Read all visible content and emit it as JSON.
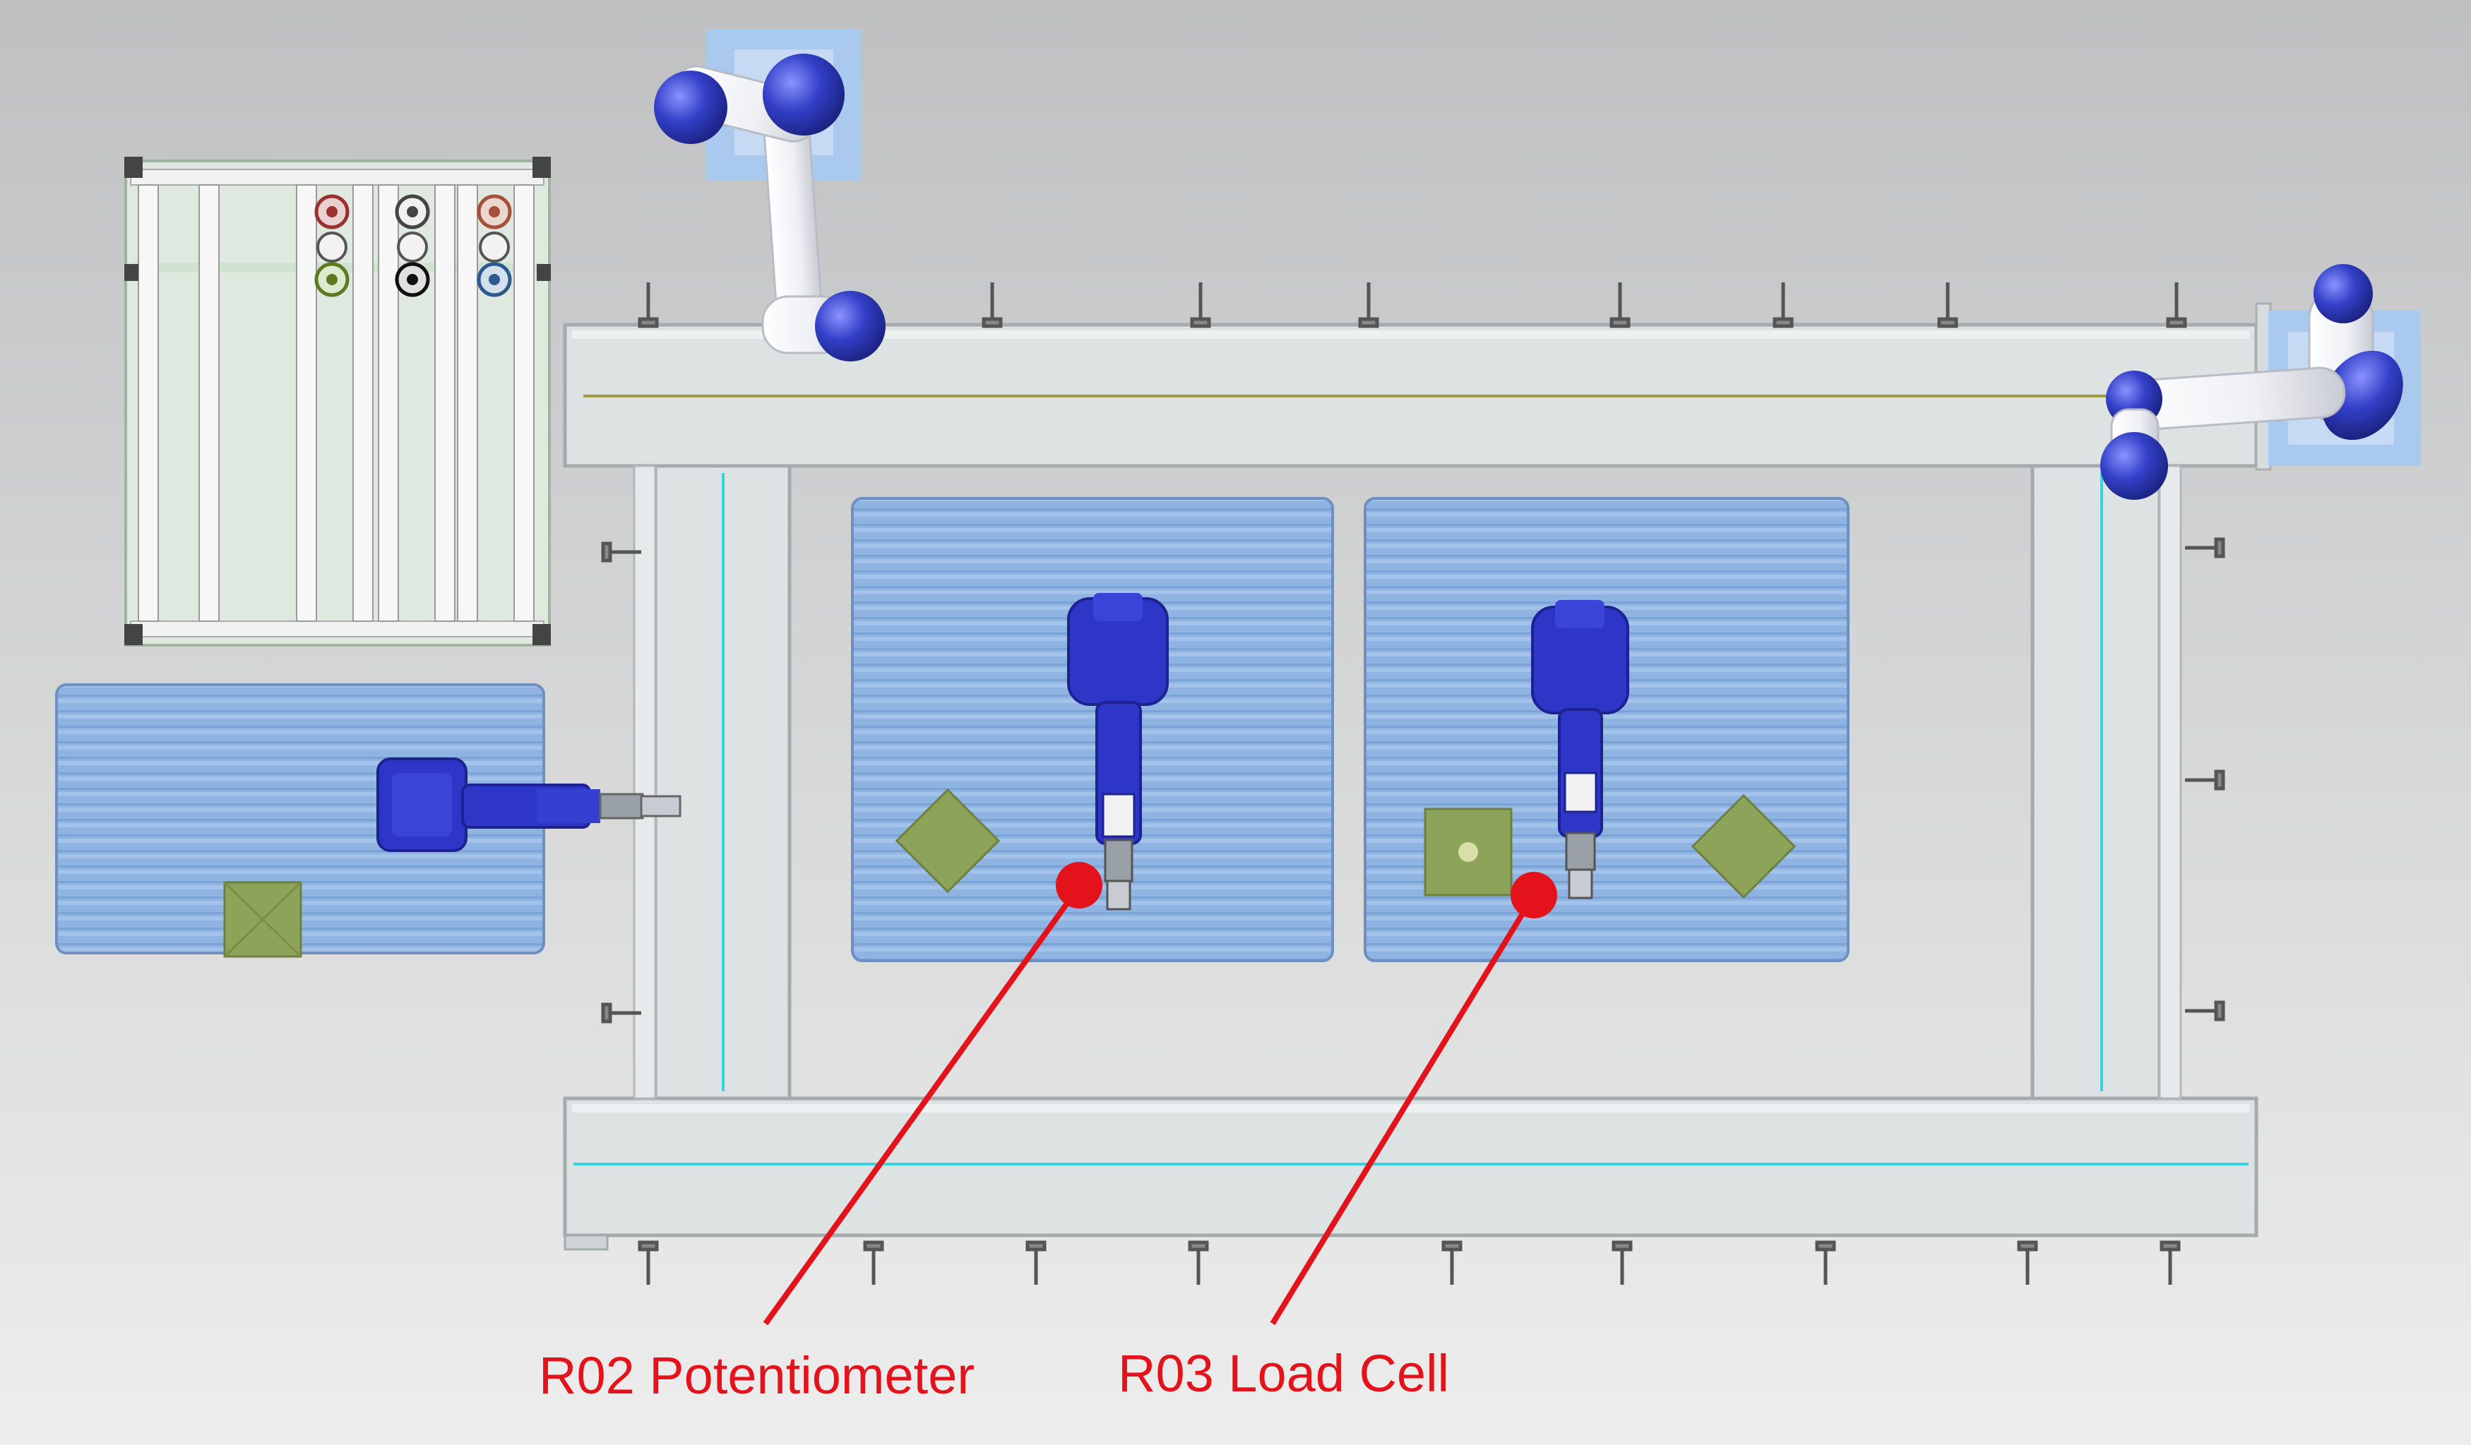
{
  "colors": {
    "background_top": "#bfc0c1",
    "background_bottom": "#ededed",
    "frame_fill": "#dde2e3",
    "frame_stroke": "#a4abad",
    "table_fill": "#8fb4e2",
    "table_line": "#7ba3d6",
    "fixture_green": "#8ea35a",
    "robot_blue": "#2e36c8",
    "robot_dark": "#1d2290",
    "cobot_white": "#f3f4f6",
    "cobot_blue": "#3340c8",
    "plate_blue": "#a9c9ef",
    "callout_red": "#e3121b",
    "rail_cyan": "#39d3df",
    "rail_olive": "#9f9a3b"
  },
  "callouts": [
    {
      "id": "r02",
      "label": "R02 Potentiometer"
    },
    {
      "id": "r03",
      "label": "R03 Load Cell"
    }
  ]
}
